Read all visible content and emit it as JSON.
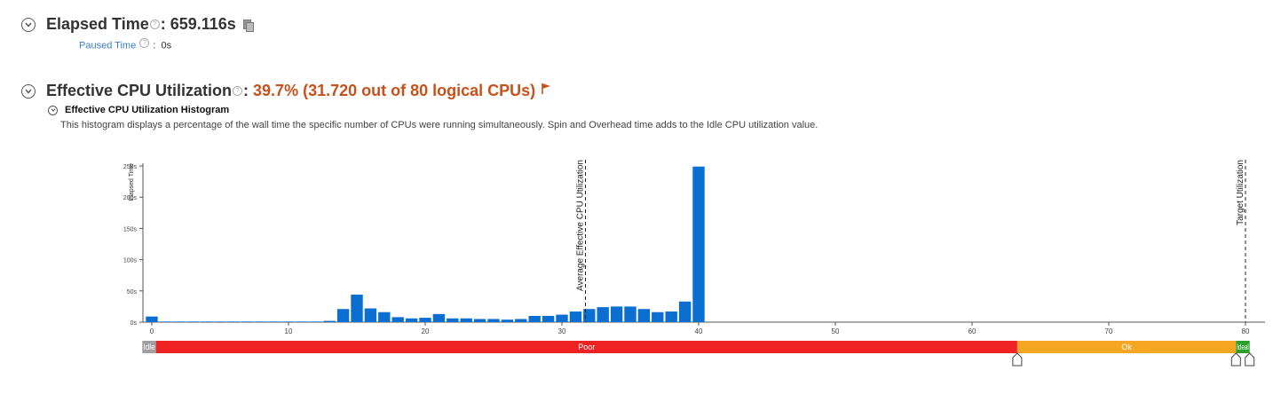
{
  "elapsed": {
    "label": "Elapsed Time",
    "value": "659.116s",
    "paused_label": "Paused Time",
    "paused_value": "0s"
  },
  "cpu": {
    "label": "Effective CPU Utilization",
    "value": "39.7% (31.720 out of 80 logical CPUs)",
    "flag_color": "#c8501a"
  },
  "histogram": {
    "title": "Effective CPU Utilization Histogram",
    "description": "This histogram displays a percentage of the wall time the specific number of CPUs were running simultaneously. Spin and Overhead time adds to the Idle CPU utilization value."
  },
  "colors": {
    "bar": "#0b6fd1",
    "idle": "#a0a0a0",
    "poor": "#ee2222",
    "ok": "#f5a623",
    "ideal": "#2aa02a"
  },
  "chart_data": {
    "type": "bar",
    "ylabel": "Elapsed Time",
    "xlim": [
      0,
      80
    ],
    "ylim": [
      0,
      250
    ],
    "yticks": [
      "0s",
      "50s",
      "100s",
      "150s",
      "200s",
      "250s"
    ],
    "ytick_values": [
      0,
      50,
      100,
      150,
      200,
      250
    ],
    "xticks": [
      "0",
      "10",
      "20",
      "30",
      "40",
      "50",
      "60",
      "70",
      "80"
    ],
    "xtick_values": [
      0,
      10,
      20,
      30,
      40,
      50,
      60,
      70,
      80
    ],
    "x": [
      0,
      1,
      2,
      3,
      4,
      5,
      6,
      7,
      8,
      9,
      10,
      11,
      12,
      13,
      14,
      15,
      16,
      17,
      18,
      19,
      20,
      21,
      22,
      23,
      24,
      25,
      26,
      27,
      28,
      29,
      30,
      31,
      32,
      33,
      34,
      35,
      36,
      37,
      38,
      39,
      40
    ],
    "values": [
      9,
      1,
      1,
      1,
      1,
      1,
      1,
      1,
      1,
      1,
      1,
      1,
      1,
      2,
      21,
      44,
      22,
      16,
      8,
      6,
      7,
      13,
      6,
      6,
      5,
      5,
      4,
      5,
      10,
      10,
      12,
      17,
      21,
      24,
      25,
      25,
      21,
      16,
      17,
      33,
      249
    ],
    "markers": [
      {
        "label": "Average Effective CPU Utilization",
        "x": 31.72
      },
      {
        "label": "Target Utilization",
        "x": 80
      }
    ],
    "ranges": [
      {
        "label": "Idle",
        "from": -0.5,
        "to": 0.5,
        "color": "idle"
      },
      {
        "label": "Poor",
        "from": 0.5,
        "to": 63.5,
        "color": "poor"
      },
      {
        "label": "Ok",
        "from": 63.5,
        "to": 79.5,
        "color": "ok"
      },
      {
        "label": "Ideal",
        "from": 79.5,
        "to": 80.5,
        "color": "ideal"
      }
    ],
    "slider_positions": [
      63.5,
      79.5,
      80.5
    ]
  }
}
